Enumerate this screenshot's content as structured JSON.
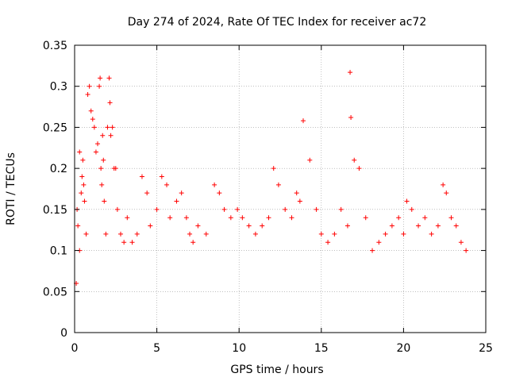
{
  "chart_data": {
    "type": "scatter",
    "title": "Day 274 of 2024, Rate Of TEC Index for receiver ac72",
    "xlabel": "GPS time / hours",
    "ylabel": "ROTI / TECUs",
    "xlim": [
      0,
      25
    ],
    "ylim": [
      0,
      0.35
    ],
    "xticks": [
      0,
      5,
      10,
      15,
      20,
      25
    ],
    "xtick_labels": [
      "0",
      "5",
      "10",
      "15",
      "20",
      "25"
    ],
    "yticks": [
      0,
      0.05,
      0.1,
      0.15,
      0.2,
      0.25,
      0.3,
      0.35
    ],
    "ytick_labels": [
      "0",
      "0.05",
      "0.1",
      "0.15",
      "0.2",
      "0.25",
      "0.3",
      "0.35"
    ],
    "grid": true,
    "marker": "+",
    "series": [
      {
        "name": "ROTI",
        "color": "#ff0000",
        "x": [
          0.1,
          0.15,
          0.2,
          0.3,
          0.3,
          0.4,
          0.45,
          0.5,
          0.55,
          0.6,
          0.7,
          0.8,
          0.9,
          1.0,
          1.1,
          1.2,
          1.3,
          1.4,
          1.5,
          1.55,
          1.6,
          1.65,
          1.7,
          1.75,
          1.8,
          1.9,
          2.0,
          2.1,
          2.15,
          2.2,
          2.3,
          2.4,
          2.5,
          2.6,
          2.8,
          3.0,
          3.2,
          3.5,
          3.8,
          4.1,
          4.4,
          4.6,
          5.0,
          5.3,
          5.6,
          5.8,
          6.2,
          6.5,
          6.8,
          7.0,
          7.2,
          7.5,
          8.0,
          8.5,
          8.8,
          9.1,
          9.5,
          9.9,
          10.2,
          10.6,
          11.0,
          11.4,
          11.8,
          12.1,
          12.4,
          12.8,
          13.2,
          13.5,
          13.7,
          13.9,
          14.3,
          14.7,
          15.0,
          15.4,
          15.8,
          16.2,
          16.6,
          16.75,
          16.8,
          17.0,
          17.3,
          17.7,
          18.1,
          18.5,
          18.9,
          19.3,
          19.7,
          20.0,
          20.2,
          20.5,
          20.9,
          21.3,
          21.7,
          22.1,
          22.4,
          22.6,
          22.9,
          23.2,
          23.5,
          23.8
        ],
        "y": [
          0.06,
          0.15,
          0.13,
          0.22,
          0.1,
          0.17,
          0.19,
          0.21,
          0.18,
          0.16,
          0.12,
          0.29,
          0.3,
          0.27,
          0.26,
          0.25,
          0.22,
          0.23,
          0.3,
          0.31,
          0.2,
          0.18,
          0.24,
          0.21,
          0.16,
          0.12,
          0.25,
          0.31,
          0.28,
          0.24,
          0.25,
          0.2,
          0.2,
          0.15,
          0.12,
          0.11,
          0.14,
          0.11,
          0.12,
          0.19,
          0.17,
          0.13,
          0.15,
          0.19,
          0.18,
          0.14,
          0.16,
          0.17,
          0.14,
          0.12,
          0.11,
          0.13,
          0.12,
          0.18,
          0.17,
          0.15,
          0.14,
          0.15,
          0.14,
          0.13,
          0.12,
          0.13,
          0.14,
          0.2,
          0.18,
          0.15,
          0.14,
          0.17,
          0.16,
          0.258,
          0.21,
          0.15,
          0.12,
          0.11,
          0.12,
          0.15,
          0.13,
          0.317,
          0.262,
          0.21,
          0.2,
          0.14,
          0.1,
          0.11,
          0.12,
          0.13,
          0.14,
          0.12,
          0.16,
          0.15,
          0.13,
          0.14,
          0.12,
          0.13,
          0.18,
          0.17,
          0.14,
          0.13,
          0.11,
          0.1
        ]
      }
    ]
  }
}
